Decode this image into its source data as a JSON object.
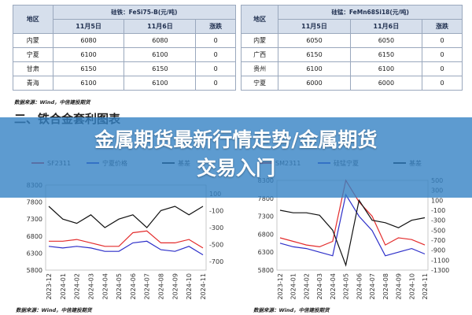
{
  "table_left": {
    "caption": "硅铁：FeSi75-B(元/吨)",
    "headers": [
      "地区",
      "11月5日",
      "11月6日",
      "涨跌"
    ],
    "rows": [
      [
        "内蒙",
        "6080",
        "6080",
        "0"
      ],
      [
        "宁夏",
        "6100",
        "6100",
        "0"
      ],
      [
        "甘肃",
        "6150",
        "6150",
        "0"
      ],
      [
        "青海",
        "6100",
        "6100",
        "0"
      ]
    ]
  },
  "table_right": {
    "caption": "硅锰：FeMn68Si18(元/吨)",
    "headers": [
      "地区",
      "11月5日",
      "11月6日",
      "涨跌"
    ],
    "rows": [
      [
        "内蒙",
        "6050",
        "6050",
        "0"
      ],
      [
        "广西",
        "6150",
        "6150",
        "0"
      ],
      [
        "贵州",
        "6100",
        "6100",
        "0"
      ],
      [
        "宁夏",
        "6000",
        "6000",
        "0"
      ]
    ]
  },
  "source_top": "数据来源：Wind，中信建投期货",
  "section_title": "二、铁合金套利图表",
  "banner": {
    "line1": "金属期货最新行情走势/金属期货",
    "line2": "交易入门"
  },
  "source_bottom_left": "数据来源：Wind，中信建投期货",
  "source_bottom_right": "数据来源：Wind，中信建投期货",
  "chart_data": [
    {
      "type": "line",
      "legend": [
        "SF2311",
        "宁夏价格",
        "基差"
      ],
      "x": [
        "2023-12",
        "2024-01",
        "2024-02",
        "2024-03",
        "2024-04",
        "2024-05",
        "2024-06",
        "2024-07",
        "2024-08",
        "2024-09",
        "2024-10",
        "2024-11"
      ],
      "y_left_ticks": [
        "8300",
        "7800",
        "7300",
        "6800",
        "6300",
        "5800"
      ],
      "y_right_ticks": [
        "100",
        "-100",
        "-300",
        "-500",
        "-700"
      ],
      "ylim_left": [
        5800,
        8300
      ],
      "ylim_right": [
        -800,
        200
      ],
      "series": [
        {
          "name": "SF2311",
          "color": "#e32b2b",
          "values": [
            6650,
            6650,
            6700,
            6600,
            6500,
            6500,
            6900,
            6950,
            6600,
            6600,
            6700,
            6450
          ]
        },
        {
          "name": "宁夏价格",
          "color": "#2d2fc9",
          "values": [
            6500,
            6450,
            6500,
            6450,
            6350,
            6350,
            6600,
            6650,
            6400,
            6350,
            6500,
            6250
          ]
        },
        {
          "name": "基差",
          "color": "#111111",
          "values": [
            -50,
            -200,
            -250,
            -150,
            -300,
            -200,
            -150,
            -300,
            -100,
            -50,
            -150,
            -50
          ]
        }
      ]
    },
    {
      "type": "line",
      "legend": [
        "SM2311",
        "硅锰宁夏",
        "基差"
      ],
      "x": [
        "2023-12",
        "2024-01",
        "2024-02",
        "2024-03",
        "2024-04",
        "2024-05",
        "2024-06",
        "2024-07",
        "2024-08",
        "2024-09",
        "2024-10",
        "2024-11"
      ],
      "y_left_ticks": [
        "8300",
        "7800",
        "7300",
        "6800",
        "6300",
        "5800"
      ],
      "y_right_ticks": [
        "500",
        "300",
        "100",
        "-100",
        "-300",
        "-500",
        "-700",
        "-900",
        "-1100",
        "-1300"
      ],
      "ylim_left": [
        5800,
        8300
      ],
      "ylim_right": [
        -1300,
        500
      ],
      "series": [
        {
          "name": "SM2311",
          "color": "#e32b2b",
          "values": [
            6700,
            6600,
            6500,
            6450,
            6600,
            8300,
            7700,
            7300,
            6500,
            6700,
            6650,
            6500
          ]
        },
        {
          "name": "硅锰宁夏",
          "color": "#2d2fc9",
          "values": [
            6550,
            6450,
            6400,
            6300,
            6200,
            7900,
            7300,
            6900,
            6200,
            6300,
            6400,
            6250
          ]
        },
        {
          "name": "基差",
          "color": "#111111",
          "values": [
            -100,
            -150,
            -150,
            -200,
            -500,
            -1200,
            100,
            -300,
            -350,
            -450,
            -300,
            -250
          ]
        }
      ]
    }
  ]
}
